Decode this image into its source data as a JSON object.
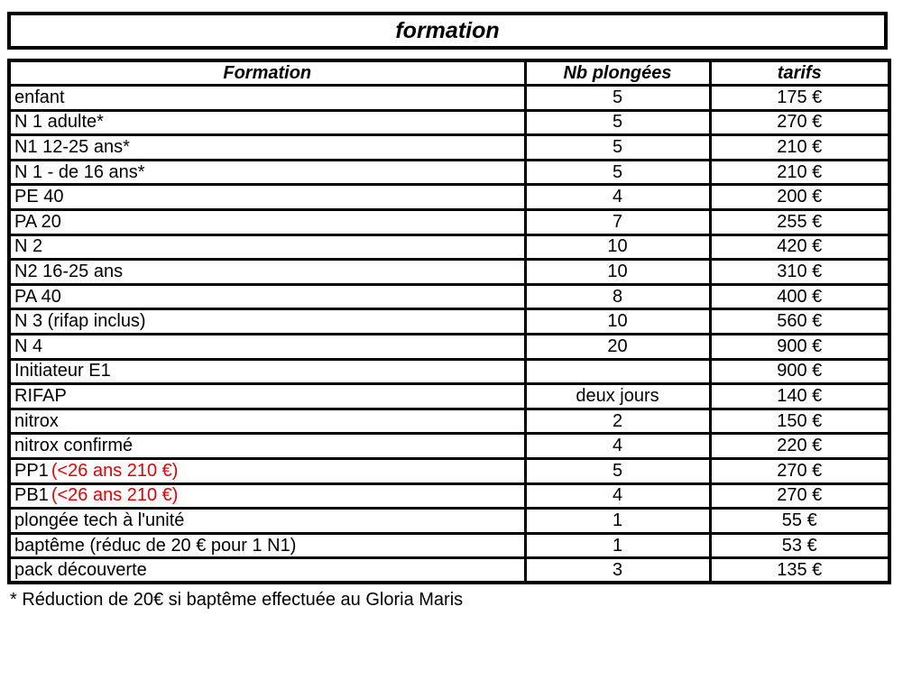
{
  "page": {
    "title": "formation",
    "footnote": "* Réduction de 20€ si baptême effectuée au Gloria Maris"
  },
  "colors": {
    "accent_red": "#e60000",
    "border": "#000000",
    "background": "#ffffff"
  },
  "table": {
    "headers": {
      "formation": "Formation",
      "nb": "Nb plongées",
      "tarif": "tarifs"
    },
    "rows": [
      {
        "formation": "enfant",
        "nb": "5",
        "tarif": "175 €"
      },
      {
        "formation": "N 1 adulte*",
        "nb": "5",
        "tarif": "270 €"
      },
      {
        "formation": "N1 12-25 ans*",
        "nb": "5",
        "tarif": "210 €"
      },
      {
        "formation": "N 1 - de 16 ans*",
        "nb": "5",
        "tarif": "210 €"
      },
      {
        "formation": "PE 40",
        "nb": "4",
        "tarif": "200 €"
      },
      {
        "formation": "PA 20",
        "nb": "7",
        "tarif": "255 €"
      },
      {
        "formation": "N 2",
        "nb": "10",
        "tarif": "420 €"
      },
      {
        "formation": "N2 16-25 ans",
        "nb": "10",
        "tarif": "310 €"
      },
      {
        "formation": "PA 40",
        "nb": "8",
        "tarif": "400 €"
      },
      {
        "formation": "N 3 (rifap inclus)",
        "nb": "10",
        "tarif": "560 €"
      },
      {
        "formation": "N 4",
        "nb": "20",
        "tarif": "900 €"
      },
      {
        "formation": "Initiateur E1",
        "nb": "",
        "tarif": "900 €"
      },
      {
        "formation": "RIFAP",
        "nb": "deux jours",
        "tarif": "140 €"
      },
      {
        "formation": "nitrox",
        "nb": "2",
        "tarif": "150 €"
      },
      {
        "formation": "nitrox confirmé",
        "nb": "4",
        "tarif": "220 €"
      },
      {
        "formation": "PP1",
        "formation_red": "(<26 ans 210 €)",
        "nb": "5",
        "tarif": "270 €"
      },
      {
        "formation": "PB1",
        "formation_red": "(<26 ans 210 €)",
        "nb": "4",
        "tarif": "270 €"
      },
      {
        "formation": "plongée tech à l'unité",
        "nb": "1",
        "tarif": "55 €"
      },
      {
        "formation": "baptême (réduc de 20 € pour 1 N1)",
        "nb": "1",
        "tarif": "53 €"
      },
      {
        "formation": "pack découverte",
        "nb": "3",
        "tarif": "135 €"
      }
    ]
  }
}
